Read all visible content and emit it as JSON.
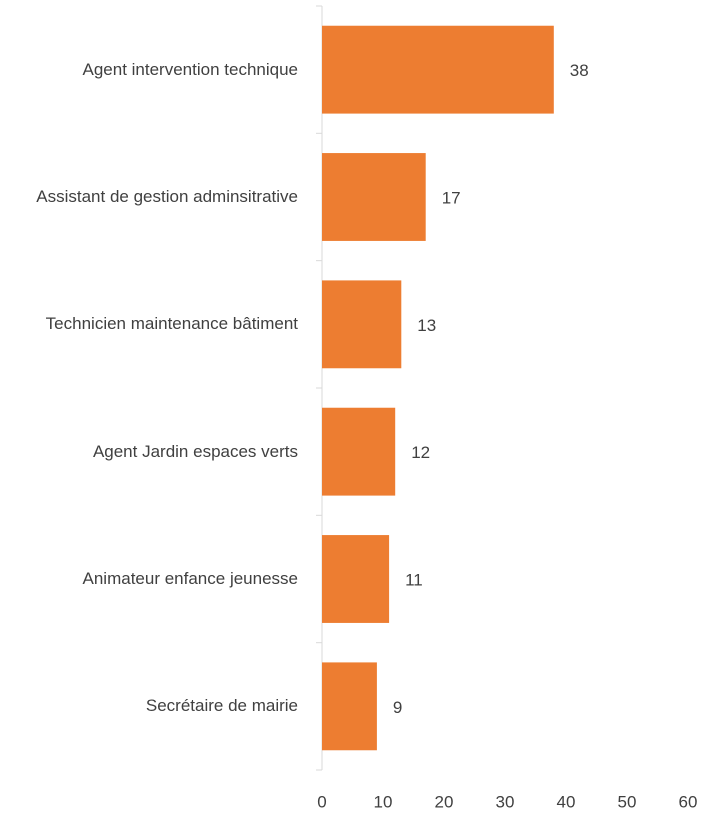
{
  "chart_data": {
    "type": "bar",
    "orientation": "horizontal",
    "categories": [
      "Agent intervention technique",
      "Assistant de gestion adminsitrative",
      "Technicien maintenance bâtiment",
      "Agent Jardin espaces verts",
      "Animateur enfance jeunesse",
      "Secrétaire de mairie"
    ],
    "values": [
      38,
      17,
      13,
      12,
      11,
      9
    ],
    "color": "#ed7d31",
    "xlim": [
      0,
      60
    ],
    "xticks": [
      0,
      10,
      20,
      30,
      40,
      50,
      60
    ],
    "grid": false
  }
}
